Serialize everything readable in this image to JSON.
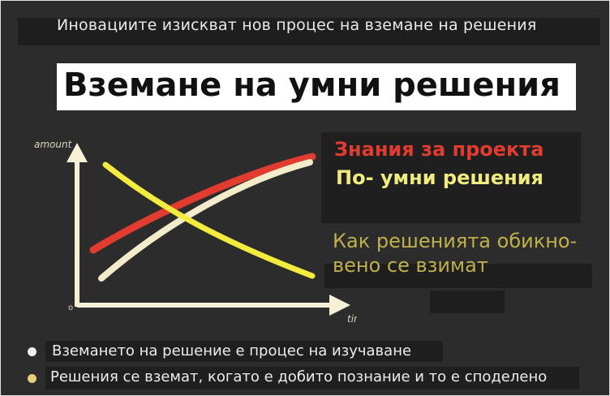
{
  "header": {
    "text": "Иновациите изискват нов процес на вземане на решения"
  },
  "title": "Вземане на умни решения",
  "legend": {
    "red": "Знания за проекта",
    "yellow": "По- умни решения",
    "khaki_line1": "Как решенията обикно-",
    "khaki_line2": "вено се взимат"
  },
  "chart": {
    "y_label": "amount",
    "x_label": "time",
    "origin_label": "o",
    "colors": {
      "red": "#e23b2f",
      "cream": "#f2eccb",
      "yellow": "#f3ec3f",
      "axis": "#f5f0d6"
    }
  },
  "bullets": [
    {
      "text": "Вземането на решение е процес на изучаване",
      "color": "#f2f0e6"
    },
    {
      "text": "Решения се вземат, когато е добито познание и то е споделено",
      "color": "#e6cf7a"
    }
  ]
}
